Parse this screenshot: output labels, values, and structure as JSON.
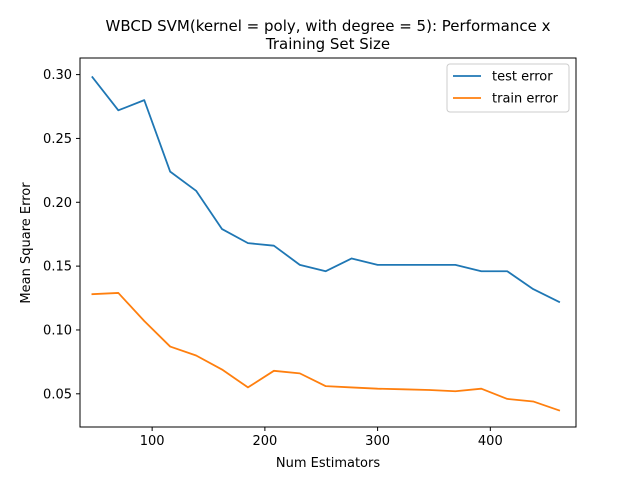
{
  "chart_data": {
    "type": "line",
    "title_lines": [
      "WBCD SVM(kernel = poly, with degree = 5): Performance x",
      "Training Set Size"
    ],
    "xlabel": "Num Estimators",
    "ylabel": "Mean Square Error",
    "xlim": [
      36,
      476
    ],
    "ylim": [
      0.024,
      0.313
    ],
    "x_ticks": [
      100,
      200,
      300,
      400
    ],
    "y_ticks": [
      0.05,
      0.1,
      0.15,
      0.2,
      0.25,
      0.3
    ],
    "y_tick_labels": [
      "0.05",
      "0.10",
      "0.15",
      "0.20",
      "0.25",
      "0.30"
    ],
    "grid": false,
    "legend_position": "top-right",
    "x": [
      47,
      70,
      93,
      116,
      139,
      162,
      185,
      208,
      231,
      254,
      277,
      300,
      323,
      346,
      369,
      392,
      415,
      438,
      461
    ],
    "series": [
      {
        "name": "test error",
        "color": "#1f77b4",
        "values": [
          0.298,
          0.272,
          0.28,
          0.224,
          0.209,
          0.179,
          0.168,
          0.166,
          0.151,
          0.146,
          0.156,
          0.151,
          0.151,
          0.151,
          0.151,
          0.146,
          0.146,
          0.132,
          0.122
        ]
      },
      {
        "name": "train error",
        "color": "#ff7f0e",
        "values": [
          0.128,
          0.129,
          0.107,
          0.087,
          0.08,
          0.069,
          0.055,
          0.068,
          0.066,
          0.056,
          0.055,
          0.054,
          0.0535,
          0.053,
          0.052,
          0.054,
          0.046,
          0.044,
          0.037
        ]
      }
    ]
  }
}
